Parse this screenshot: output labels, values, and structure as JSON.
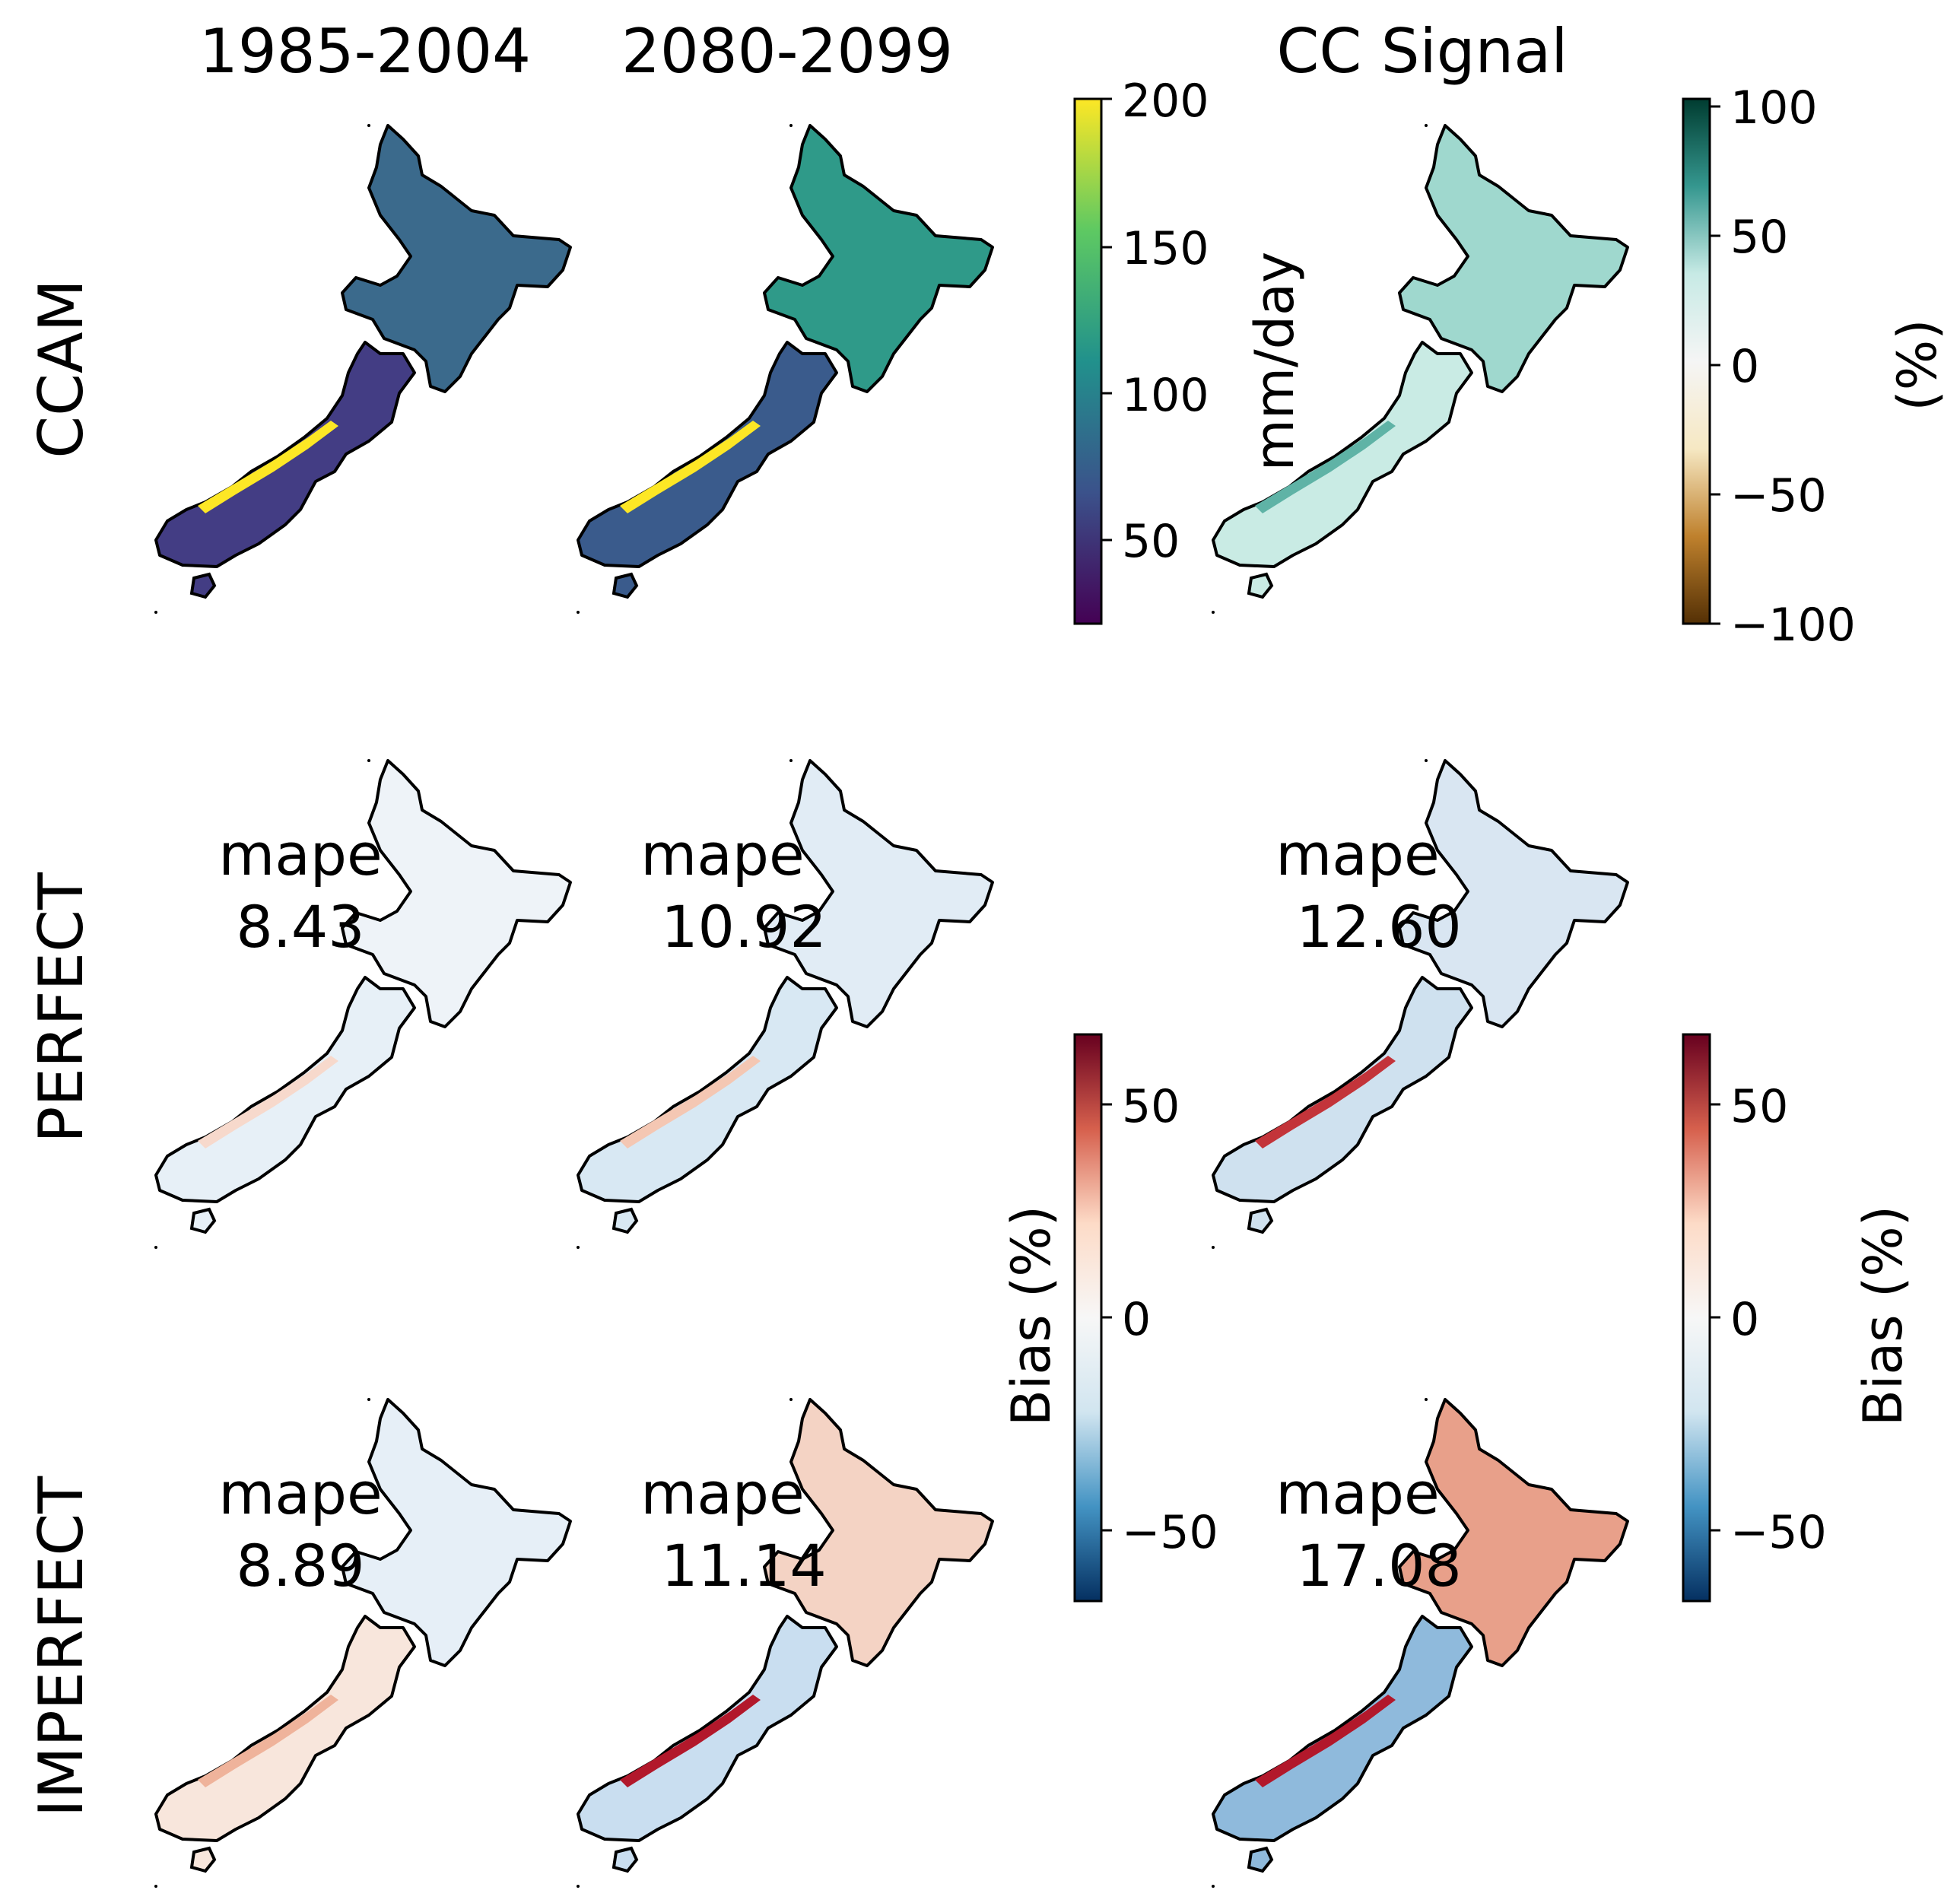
{
  "columns": {
    "historical": "1985-2004",
    "future": "2080-2099",
    "signal": "CC Signal"
  },
  "rows": {
    "ccam": "CCAM",
    "perfect": "PERFECT",
    "imperfect": "IMPERFECT"
  },
  "colorbars": {
    "precip": {
      "label": "mm/day",
      "ticks": [
        "200",
        "150",
        "100",
        "50"
      ],
      "colormap": [
        "#fde725",
        "#5ec962",
        "#21918c",
        "#3b528b",
        "#440154"
      ]
    },
    "signal": {
      "label": "(%)",
      "ticks": [
        "100",
        "50",
        "0",
        "−50",
        "−100"
      ],
      "colormap": [
        "#003c30",
        "#35978f",
        "#c7eae5",
        "#f5f5f5",
        "#f6e8c3",
        "#bf812d",
        "#543005"
      ]
    },
    "bias_left": {
      "label": "Bias (%)",
      "ticks": [
        "50",
        "0",
        "−50"
      ],
      "colormap": [
        "#67001f",
        "#d6604d",
        "#fddbc7",
        "#f7f7f7",
        "#d1e5f0",
        "#4393c3",
        "#053061"
      ]
    },
    "bias_right": {
      "label": "Bias (%)",
      "ticks": [
        "50",
        "0",
        "−50"
      ],
      "colormap": [
        "#67001f",
        "#d6604d",
        "#fddbc7",
        "#f7f7f7",
        "#d1e5f0",
        "#4393c3",
        "#053061"
      ]
    }
  },
  "mape": {
    "word": "mape",
    "perfect_historical": "8.43",
    "perfect_future": "10.92",
    "perfect_signal": "12.60",
    "imperfect_historical": "8.89",
    "imperfect_future": "11.14",
    "imperfect_signal": "17.08"
  },
  "map_fills": {
    "ccam_historical": {
      "north": "#3b6a8c",
      "south": "#433d84",
      "stripe": "#fde725"
    },
    "ccam_future": {
      "north": "#2f9a89",
      "south": "#3a5b8c",
      "stripe": "#fde725"
    },
    "ccam_signal": {
      "north": "#9fd8ce",
      "south": "#c9ebe4",
      "stripe": "#5fb3a6"
    },
    "perfect_historical": {
      "north": "#eef3f8",
      "south": "#e7f0f7",
      "stripe": "#f7d9cc"
    },
    "perfect_future": {
      "north": "#e1ecf5",
      "south": "#d8e8f3",
      "stripe": "#f4c7b3"
    },
    "perfect_signal": {
      "north": "#d9e6f2",
      "south": "#cfe1ef",
      "stripe": "#c3343a"
    },
    "imperfect_historical": {
      "north": "#e6eff7",
      "south": "#f8e6dc",
      "stripe": "#efb39b"
    },
    "imperfect_future": {
      "north": "#f4d3c4",
      "south": "#c9def0",
      "stripe": "#b2182b"
    },
    "imperfect_signal": {
      "north": "#e8a08a",
      "south": "#8fbadc",
      "stripe": "#b2182b"
    }
  }
}
